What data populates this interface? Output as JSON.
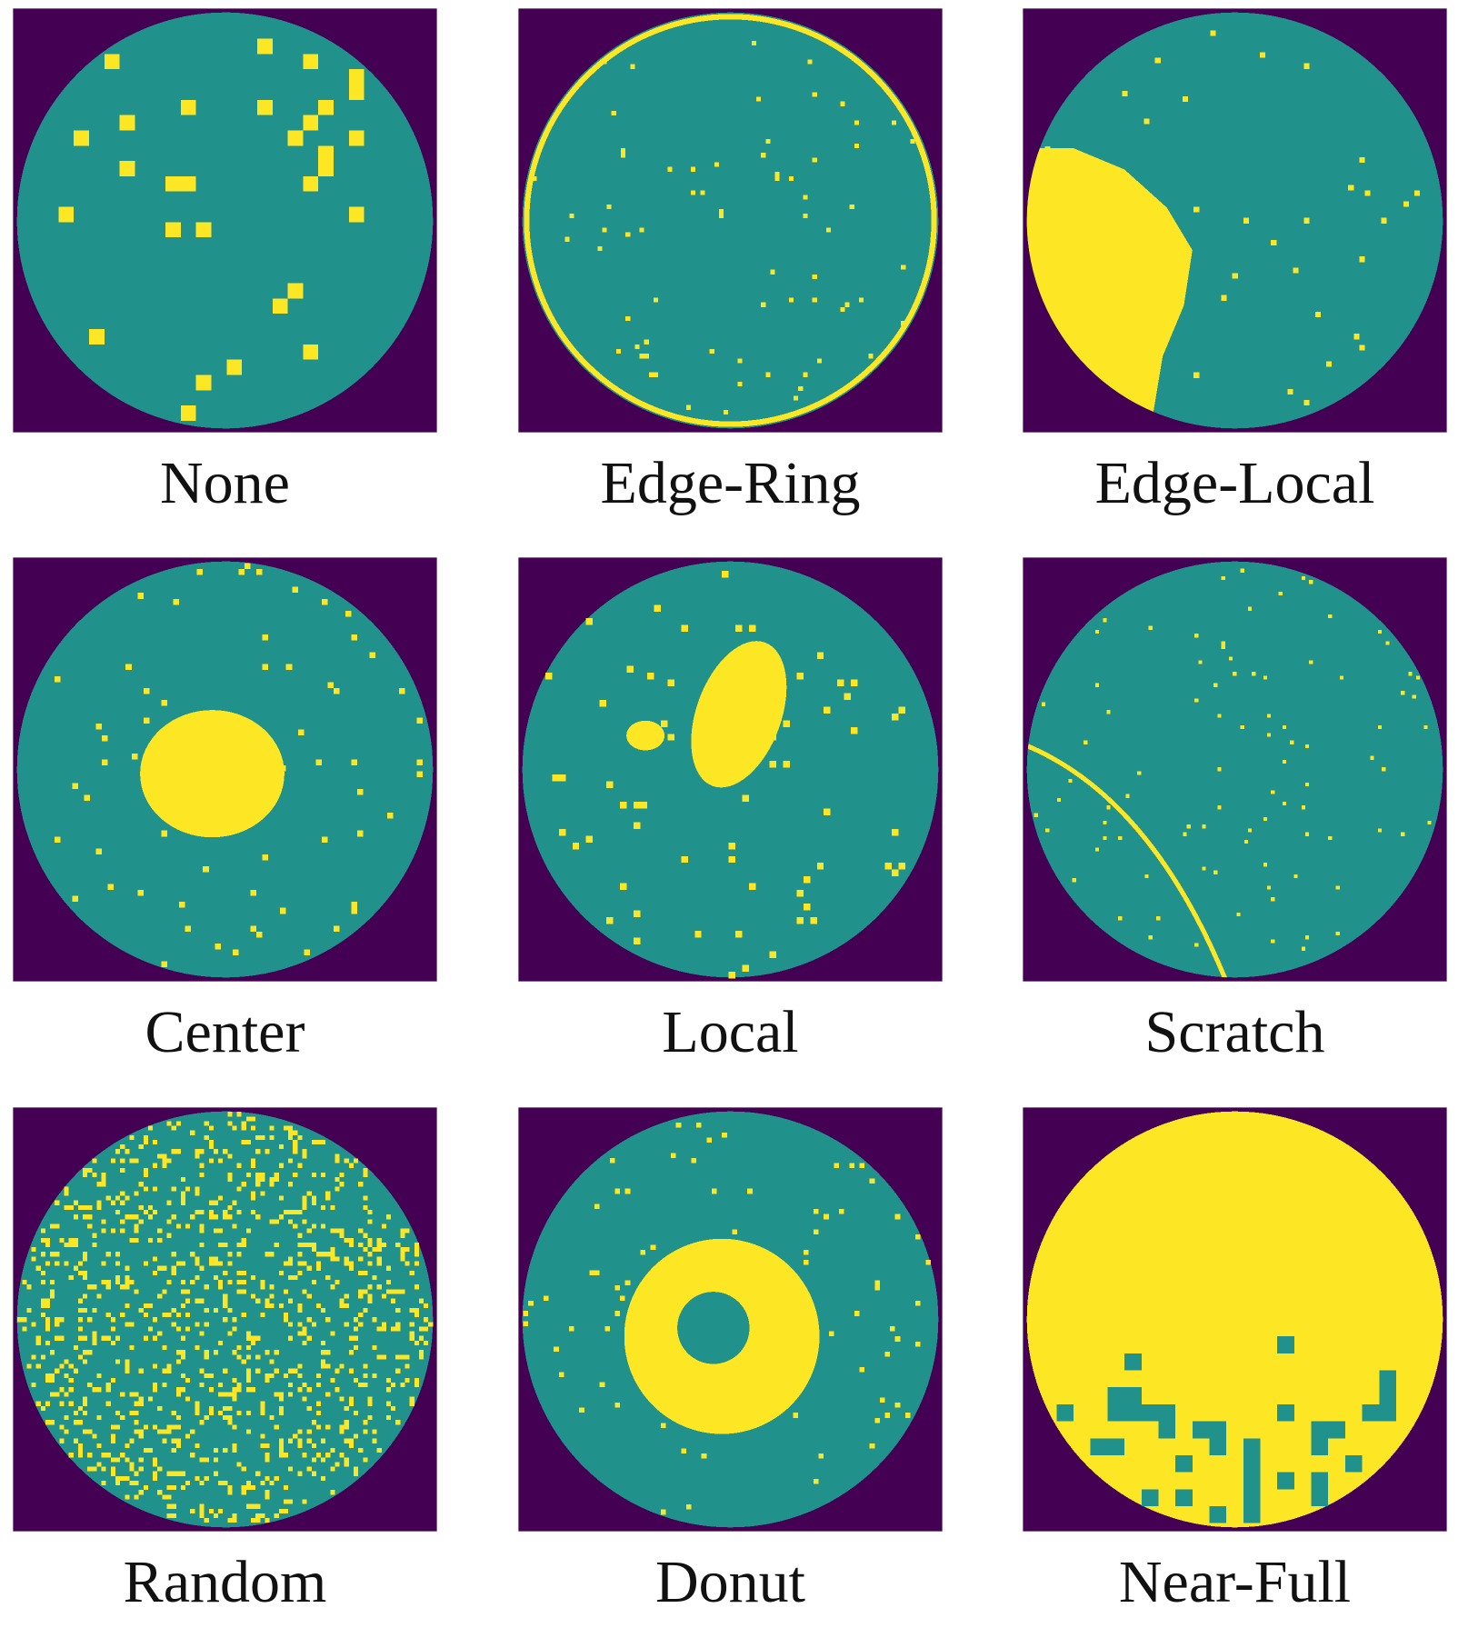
{
  "panels": [
    {
      "label": "None"
    },
    {
      "label": "Edge-Ring"
    },
    {
      "label": "Edge-Local"
    },
    {
      "label": "Center"
    },
    {
      "label": "Local"
    },
    {
      "label": "Scratch"
    },
    {
      "label": "Random"
    },
    {
      "label": "Donut"
    },
    {
      "label": "Near-Full"
    }
  ]
}
